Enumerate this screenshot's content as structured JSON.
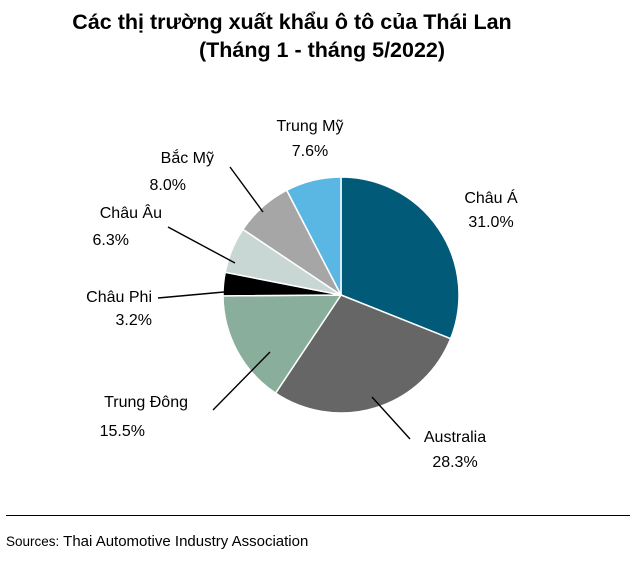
{
  "title": {
    "line1": "Các thị trường xuất khẩu ô tô của Thái Lan",
    "line2": "(Tháng 1 - tháng 5/2022)"
  },
  "chart_data": {
    "type": "pie",
    "start_angle_deg": 0,
    "direction": "clockwise",
    "slices": [
      {
        "name": "Châu Á",
        "value": 31.0,
        "label": "31.0%",
        "color": "#005A78"
      },
      {
        "name": "Australia",
        "value": 28.3,
        "label": "28.3%",
        "color": "#666666"
      },
      {
        "name": "Trung Đông",
        "value": 15.5,
        "label": "15.5%",
        "color": "#8AAE9C"
      },
      {
        "name": "Châu Phi",
        "value": 3.2,
        "label": "3.2%",
        "color": "#000000"
      },
      {
        "name": "Châu Âu",
        "value": 6.3,
        "label": "6.3%",
        "color": "#C9D7D4"
      },
      {
        "name": "Bắc Mỹ",
        "value": 8.0,
        "label": "8.0%",
        "color": "#A6A6A6"
      },
      {
        "name": "Trung Mỹ",
        "value": 7.6,
        "label": "7.6%",
        "color": "#5AB7E4"
      }
    ]
  },
  "source": {
    "prefix": "Sources:",
    "text": " Thai Automotive Industry Association"
  }
}
